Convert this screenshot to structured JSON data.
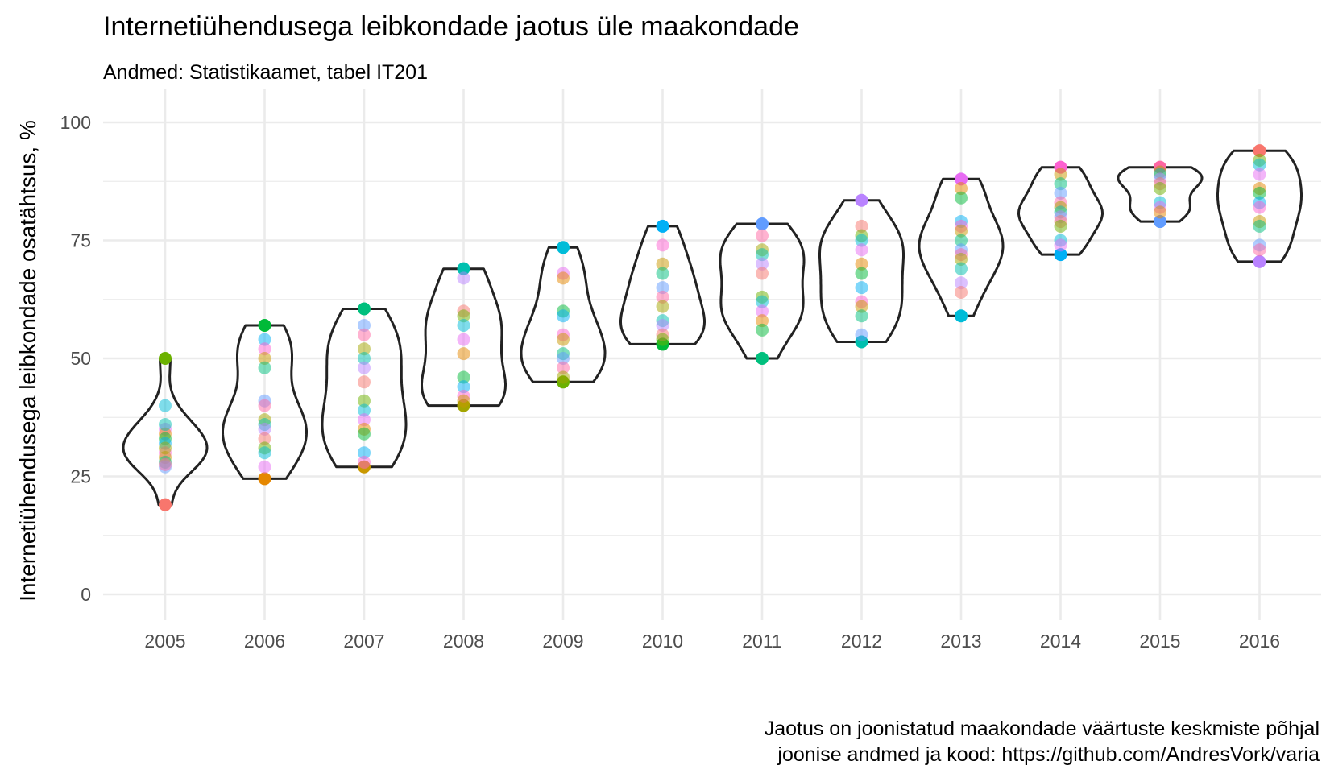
{
  "chart_data": {
    "type": "violin",
    "title": "Internetiühendusega leibkondade jaotus üle maakondade",
    "subtitle": "Andmed: Statistikaamet, tabel IT201",
    "ylabel": "Internetiühendusega leibkondade osatähtsus, %",
    "xlabel": "",
    "caption": [
      "Jaotus on joonistatud maakondade väärtuste keskmiste põhjal",
      "joonise andmed ja kood: https://github.com/AndresVork/varia"
    ],
    "ylim": [
      0,
      100
    ],
    "yticks": [
      0,
      25,
      50,
      75,
      100
    ],
    "grid": true,
    "legend": "none",
    "categories": [
      "2005",
      "2006",
      "2007",
      "2008",
      "2009",
      "2010",
      "2011",
      "2012",
      "2013",
      "2014",
      "2015",
      "2016"
    ],
    "series": [
      {
        "values": [
          19,
          50,
          40,
          35,
          34,
          33,
          32,
          30,
          29,
          28,
          27,
          27.5,
          31,
          36
        ]
      },
      {
        "values": [
          24.5,
          57,
          54,
          52,
          50,
          48,
          41,
          40,
          37,
          36,
          35,
          33,
          31,
          30,
          27
        ]
      },
      {
        "values": [
          27,
          60.5,
          57,
          55,
          52,
          50,
          48,
          45,
          41,
          39,
          37,
          35,
          34,
          30,
          28
        ]
      },
      {
        "values": [
          40,
          69,
          67,
          60,
          59,
          57,
          54,
          51,
          46,
          44,
          42,
          41
        ]
      },
      {
        "values": [
          45,
          73.5,
          68,
          67,
          60,
          59,
          55,
          54,
          51,
          50,
          48,
          46
        ]
      },
      {
        "values": [
          53,
          78,
          74,
          70,
          68,
          65,
          63,
          61,
          58,
          57,
          55,
          54
        ]
      },
      {
        "values": [
          50,
          78.5,
          76,
          73,
          72,
          70,
          68,
          63,
          62,
          60,
          58,
          56
        ]
      },
      {
        "values": [
          53.5,
          83.5,
          78,
          76,
          75,
          73,
          70,
          68,
          65,
          62,
          61,
          59,
          55
        ]
      },
      {
        "values": [
          59,
          88,
          86,
          84,
          79,
          78,
          77,
          75,
          73,
          72,
          71,
          69,
          66,
          64
        ]
      },
      {
        "values": [
          72,
          90.5,
          89,
          87,
          85,
          83,
          82,
          81,
          80,
          79,
          78,
          75,
          74
        ]
      },
      {
        "values": [
          79,
          90.5,
          89.5,
          89,
          88,
          87,
          86,
          83,
          82,
          81
        ]
      },
      {
        "values": [
          70.5,
          94,
          92,
          91,
          89,
          86,
          85,
          83,
          82,
          79,
          78,
          74,
          73
        ]
      }
    ]
  }
}
